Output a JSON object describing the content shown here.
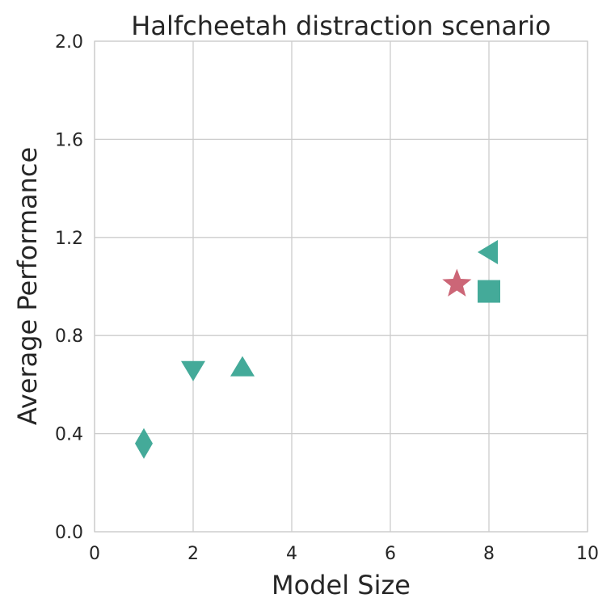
{
  "chart_data": {
    "type": "scatter",
    "title": "Halfcheetah distraction scenario",
    "xlabel": "Model Size",
    "ylabel": "Average Performance",
    "xlim": [
      0,
      10
    ],
    "ylim": [
      0,
      2.0
    ],
    "xticks": [
      "0",
      "2",
      "4",
      "6",
      "8",
      "10"
    ],
    "yticks": [
      "0.0",
      "0.4",
      "0.8",
      "1.2",
      "1.6",
      "2.0"
    ],
    "grid": true,
    "colors": {
      "teal": "#44aa99",
      "rose": "#cc6677"
    },
    "points": [
      {
        "name": "diamond-point",
        "marker": "diamond",
        "color": "#44aa99",
        "x": 1.0,
        "y": 0.36
      },
      {
        "name": "triangle-down-point",
        "marker": "triangle-down",
        "color": "#44aa99",
        "x": 2.0,
        "y": 0.66
      },
      {
        "name": "triangle-up-point",
        "marker": "triangle-up",
        "color": "#44aa99",
        "x": 3.0,
        "y": 0.67
      },
      {
        "name": "star-point",
        "marker": "star",
        "color": "#cc6677",
        "x": 7.35,
        "y": 1.01
      },
      {
        "name": "square-point",
        "marker": "square",
        "color": "#44aa99",
        "x": 8.0,
        "y": 0.98
      },
      {
        "name": "triangle-left-point",
        "marker": "triangle-left",
        "color": "#44aa99",
        "x": 8.0,
        "y": 1.14
      }
    ]
  }
}
